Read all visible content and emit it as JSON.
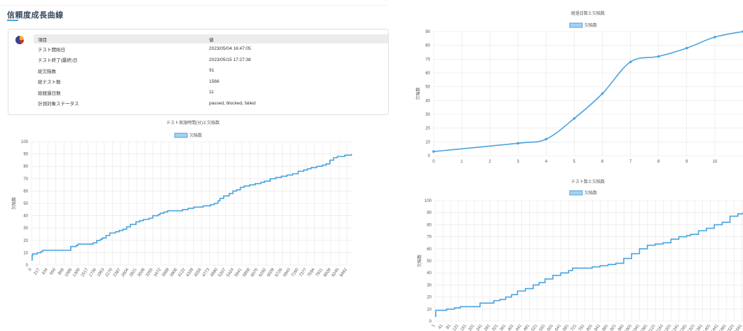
{
  "page": {
    "title": "信頼度成長曲線"
  },
  "info_table": {
    "headers": [
      "項目",
      "値"
    ],
    "rows": [
      {
        "label": "テスト開始日",
        "value": "2023/05/04 16:47:05"
      },
      {
        "label": "テスト終了(最終)日",
        "value": "2023/05/15 17:27:38"
      },
      {
        "label": "総欠陥数",
        "value": "91"
      },
      {
        "label": "総テスト数",
        "value": "1566"
      },
      {
        "label": "総経過日数",
        "value": "11"
      },
      {
        "label": "計測対象ステータス",
        "value": "passed, blocked, failed"
      }
    ]
  },
  "colors": {
    "series": "#4aa3df",
    "legend_fill": "#a6d1ef",
    "grid": "#e6e6e6",
    "accent": "#4aa3df"
  },
  "icons": {
    "summary": "pie-chart-icon"
  },
  "chart_data": [
    {
      "id": "time",
      "type": "line",
      "step": true,
      "title": "テスト実施時間(分)と欠陥数",
      "xlabel": "",
      "ylabel": "欠陥数",
      "legend": "top-center",
      "grid": true,
      "ylim": [
        0,
        100
      ],
      "yticks": [
        0,
        10,
        20,
        30,
        40,
        50,
        60,
        70,
        80,
        90,
        100
      ],
      "xticks": [
        0,
        217,
        434,
        650,
        868,
        1085,
        1300,
        1517,
        1736,
        1953,
        2170,
        2387,
        2604,
        2821,
        3038,
        3255,
        3472,
        3689,
        3906,
        4122,
        4339,
        4556,
        4773,
        4990,
        5207,
        5424,
        5641,
        5858,
        6075,
        6292,
        6509,
        6726,
        6943,
        7160,
        7377,
        7594,
        7811,
        8028,
        8245,
        8462
      ],
      "xlim": [
        0,
        8600
      ],
      "series": [
        {
          "name": "欠陥数",
          "x": [
            0,
            15,
            30,
            150,
            250,
            300,
            600,
            1050,
            1200,
            1250,
            1600,
            1650,
            1750,
            1850,
            1900,
            2000,
            2100,
            2250,
            2350,
            2450,
            2550,
            2650,
            2800,
            2900,
            3000,
            3150,
            3250,
            3400,
            3450,
            3550,
            3650,
            3750,
            3900,
            4050,
            4200,
            4350,
            4500,
            4600,
            4700,
            4800,
            4900,
            5000,
            5050,
            5150,
            5300,
            5400,
            5500,
            5600,
            5700,
            5850,
            6000,
            6150,
            6250,
            6400,
            6550,
            6700,
            6850,
            7000,
            7150,
            7300,
            7400,
            7500,
            7650,
            7750,
            7800,
            7900,
            8000,
            8100,
            8200,
            8300,
            8400,
            8500,
            8580
          ],
          "y": [
            4,
            8,
            9,
            10,
            11,
            12,
            12,
            15,
            16,
            17,
            17,
            18,
            20,
            21,
            22,
            24,
            26,
            27,
            28,
            29,
            31,
            33,
            35,
            36,
            37,
            38,
            40,
            41,
            42,
            43,
            44,
            44,
            44,
            45,
            46,
            47,
            47,
            48,
            48,
            49,
            50,
            52,
            54,
            56,
            58,
            60,
            61,
            63,
            64,
            65,
            66,
            67,
            68,
            70,
            71,
            72,
            73,
            74,
            76,
            77,
            78,
            79,
            80,
            80,
            81,
            82,
            85,
            87,
            88,
            88,
            89,
            89,
            90
          ]
        }
      ]
    },
    {
      "id": "days",
      "type": "line",
      "title": "経過日数と欠陥数",
      "xlabel": "",
      "ylabel": "欠陥数",
      "legend": "top-center",
      "grid": true,
      "ylim": [
        0,
        90
      ],
      "yticks": [
        0,
        10,
        20,
        30,
        40,
        50,
        60,
        70,
        80,
        90
      ],
      "xlim": [
        0,
        11
      ],
      "xticks": [
        0,
        1,
        2,
        3,
        4,
        5,
        6,
        7,
        8,
        9,
        10
      ],
      "series": [
        {
          "name": "欠陥数",
          "x": [
            0,
            3,
            4,
            5,
            6,
            7,
            8,
            9,
            10,
            11
          ],
          "y": [
            3,
            9,
            12,
            27,
            45,
            68,
            72,
            78,
            86,
            90
          ]
        }
      ]
    },
    {
      "id": "tests",
      "type": "line",
      "step": true,
      "title": "テスト数と欠陥数",
      "xlabel": "",
      "ylabel": "欠陥数",
      "legend": "top-center",
      "grid": true,
      "ylim": [
        0,
        100
      ],
      "yticks": [
        0,
        10,
        20,
        30,
        40,
        50,
        60,
        70,
        80,
        90,
        100
      ],
      "xticks": [
        1,
        41,
        81,
        121,
        161,
        201,
        241,
        281,
        321,
        361,
        401,
        441,
        481,
        521,
        561,
        601,
        641,
        681,
        721,
        761,
        801,
        841,
        881,
        921,
        961,
        1001,
        1041,
        1081,
        1121,
        1161,
        1201,
        1241,
        1281,
        1321,
        1361,
        1401,
        1441,
        1481,
        1521,
        1561
      ],
      "xlim": [
        1,
        1566
      ],
      "series": [
        {
          "name": "欠陥数",
          "x": [
            1,
            5,
            10,
            60,
            100,
            130,
            200,
            230,
            300,
            330,
            360,
            390,
            420,
            460,
            500,
            530,
            560,
            600,
            640,
            680,
            700,
            740,
            800,
            840,
            880,
            920,
            960,
            1000,
            1040,
            1080,
            1120,
            1160,
            1200,
            1240,
            1280,
            1300,
            1340,
            1380,
            1420,
            1460,
            1500,
            1540,
            1566
          ],
          "y": [
            4,
            9,
            9,
            10,
            11,
            12,
            12,
            15,
            17,
            18,
            20,
            22,
            25,
            27,
            30,
            32,
            35,
            38,
            40,
            42,
            44,
            44,
            45,
            46,
            47,
            48,
            52,
            56,
            60,
            63,
            64,
            65,
            68,
            70,
            71,
            72,
            75,
            77,
            80,
            82,
            87,
            89,
            90
          ]
        }
      ]
    }
  ]
}
